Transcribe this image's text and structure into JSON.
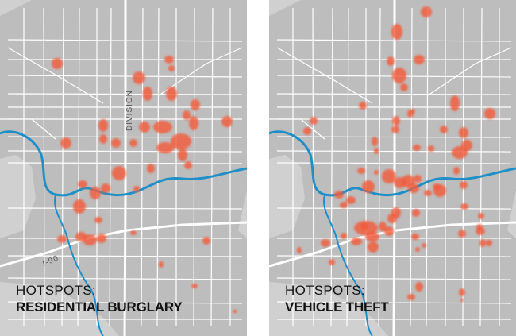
{
  "maps": [
    {
      "id": "burglary",
      "title_prefix": "HOTSPOTS:",
      "title_main": "RESIDENTIAL BURGLARY",
      "road_labels": [
        "DIVISION",
        "I-90"
      ],
      "hotspot_color": "#f15a3c"
    },
    {
      "id": "vehicle-theft",
      "title_prefix": "HOTSPOTS:",
      "title_main": "VEHICLE THEFT",
      "hotspot_color": "#f15a3c"
    }
  ],
  "colors": {
    "river": "#1f8fc7",
    "land": "#d0d0d0",
    "city": "#bdbdbd",
    "streets": "#ffffff"
  }
}
